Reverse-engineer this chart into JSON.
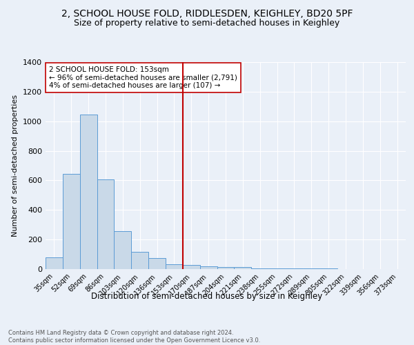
{
  "title": "2, SCHOOL HOUSE FOLD, RIDDLESDEN, KEIGHLEY, BD20 5PF",
  "subtitle": "Size of property relative to semi-detached houses in Keighley",
  "xlabel": "Distribution of semi-detached houses by size in Keighley",
  "ylabel": "Number of semi-detached properties",
  "bins": [
    "35sqm",
    "52sqm",
    "69sqm",
    "86sqm",
    "103sqm",
    "120sqm",
    "136sqm",
    "153sqm",
    "170sqm",
    "187sqm",
    "204sqm",
    "221sqm",
    "238sqm",
    "255sqm",
    "272sqm",
    "289sqm",
    "305sqm",
    "322sqm",
    "339sqm",
    "356sqm",
    "373sqm"
  ],
  "counts": [
    80,
    645,
    1045,
    605,
    255,
    115,
    75,
    35,
    30,
    20,
    15,
    15,
    5,
    5,
    5,
    5,
    5,
    0,
    0,
    0,
    0
  ],
  "bar_color": "#c9d9e8",
  "bar_edge_color": "#5b9bd5",
  "vline_color": "#c00000",
  "annotation_text": "2 SCHOOL HOUSE FOLD: 153sqm\n← 96% of semi-detached houses are smaller (2,791)\n4% of semi-detached houses are larger (107) →",
  "annotation_box_color": "#ffffff",
  "annotation_box_edge": "#c00000",
  "ylim": [
    0,
    1400
  ],
  "yticks": [
    0,
    200,
    400,
    600,
    800,
    1000,
    1200,
    1400
  ],
  "footer_text": "Contains HM Land Registry data © Crown copyright and database right 2024.\nContains public sector information licensed under the Open Government Licence v3.0.",
  "bg_color": "#eaf0f8",
  "plot_bg_color": "#eaf0f8",
  "title_fontsize": 10,
  "subtitle_fontsize": 9,
  "xlabel_fontsize": 8.5,
  "ylabel_fontsize": 8
}
